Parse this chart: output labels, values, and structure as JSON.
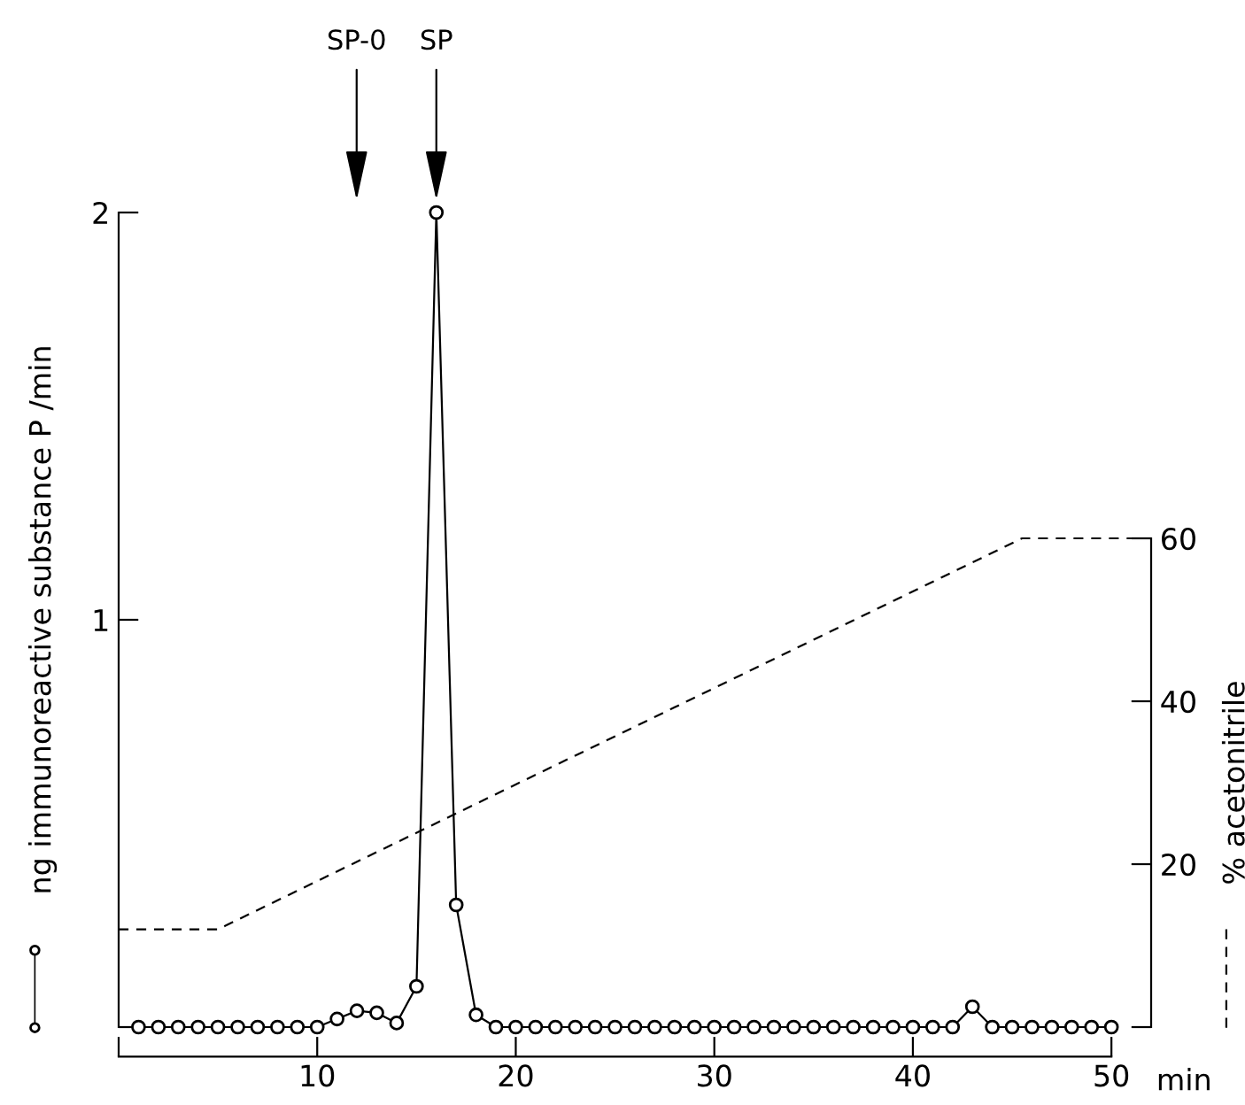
{
  "chart_data": {
    "type": "line",
    "x": [
      1,
      2,
      3,
      4,
      5,
      6,
      7,
      8,
      9,
      10,
      11,
      12,
      13,
      14,
      15,
      16,
      17,
      18,
      19,
      20,
      21,
      22,
      23,
      24,
      25,
      26,
      27,
      28,
      29,
      30,
      31,
      32,
      33,
      34,
      35,
      36,
      37,
      38,
      39,
      40,
      41,
      42,
      43,
      44,
      45,
      46,
      47,
      48,
      49,
      50
    ],
    "series": [
      {
        "color": "#000000",
        "marker": "circle",
        "line_style": "solid",
        "values": [
          0,
          0,
          0,
          0,
          0,
          0,
          0,
          0,
          0,
          0,
          0.02,
          0.04,
          0.035,
          0.01,
          0.1,
          2.0,
          0.3,
          0.03,
          0,
          0,
          0,
          0,
          0,
          0,
          0,
          0,
          0,
          0,
          0,
          0,
          0,
          0,
          0,
          0,
          0,
          0,
          0,
          0,
          0,
          0,
          0,
          0,
          0.05,
          0,
          0,
          0,
          0,
          0,
          0,
          0
        ]
      },
      {
        "color": "#000000",
        "marker": "none",
        "line_style": "dashed",
        "axis": "y2",
        "x": [
          0,
          5,
          45.5,
          52
        ],
        "values": [
          12,
          12,
          60,
          60
        ]
      }
    ],
    "xlim": [
      0,
      52
    ],
    "xticks": [
      {
        "value": 0,
        "label": null
      },
      10,
      20,
      30,
      40,
      50
    ],
    "xlabel": "min",
    "ylim": [
      0,
      2
    ],
    "yticks": [
      {
        "value": 0,
        "label": null
      },
      1,
      2
    ],
    "ylabel": "ng immunoreactive substance P /min",
    "y2lim": [
      0,
      60
    ],
    "y2ticks": [
      {
        "value": 0,
        "label": null
      },
      20,
      40,
      60
    ],
    "y2label": "% acetonitrile",
    "annotations": [
      "SP-0",
      "SP"
    ],
    "grid": false
  }
}
